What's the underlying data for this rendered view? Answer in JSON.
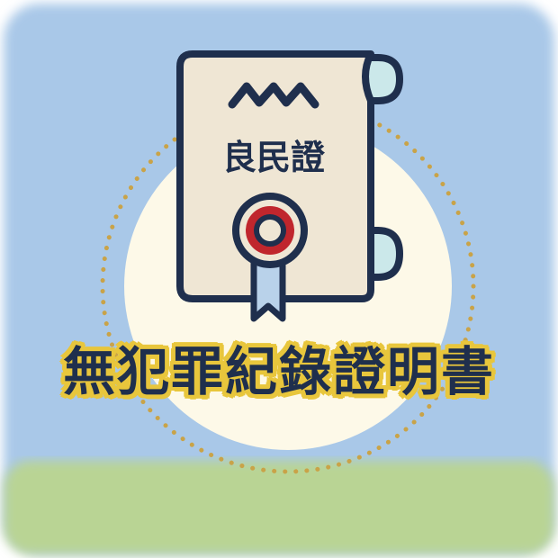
{
  "certificate": {
    "label": "良民證"
  },
  "title": "無犯罪紀錄證明書",
  "colors": {
    "sky": "#a9c8e8",
    "ground": "#b9d494",
    "halo": "#fdf9e8",
    "dots": "#c9a348",
    "paper": "#efe6d4",
    "outline": "#1f2f4d",
    "scroll_roll": "#cbe8ea",
    "seal_red": "#c0262d",
    "ribbon": "#b9d2ea",
    "title_glow": "#e8c63c"
  }
}
